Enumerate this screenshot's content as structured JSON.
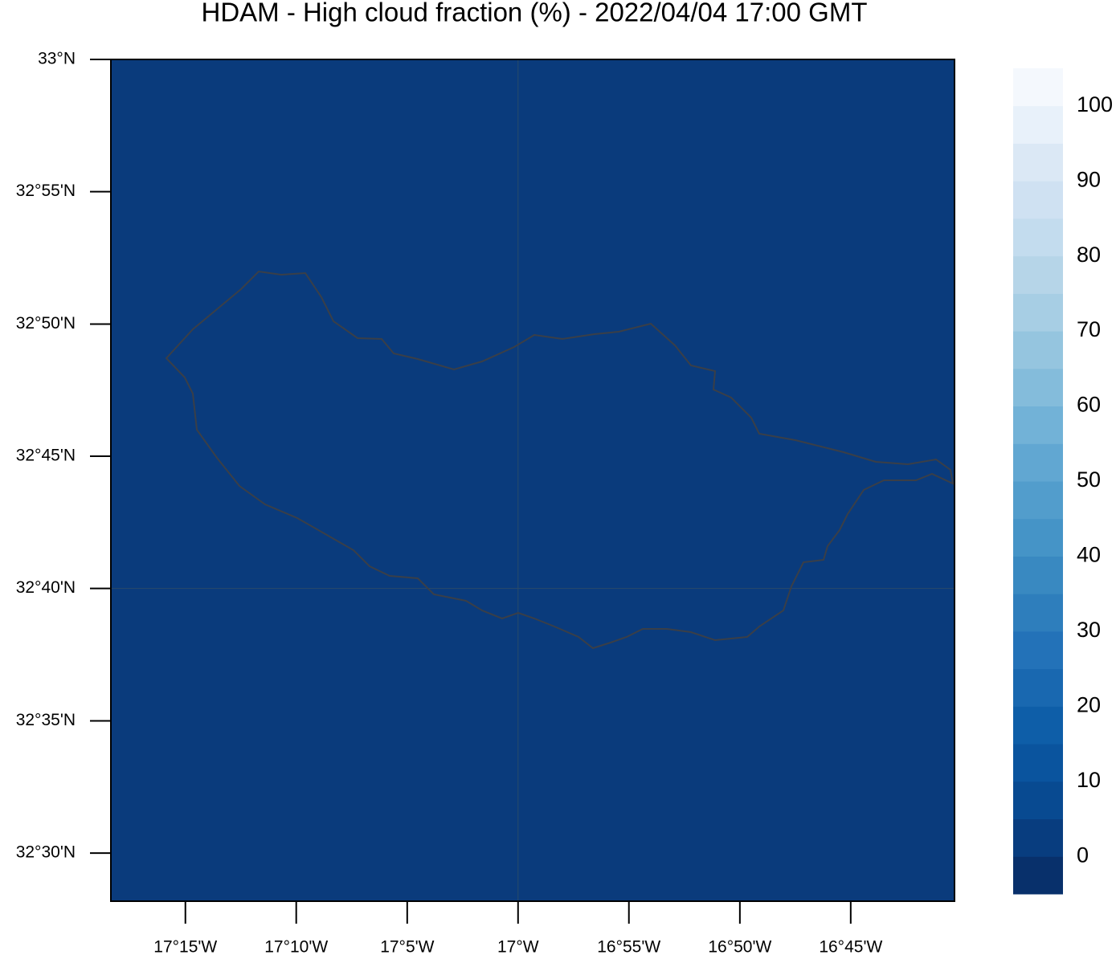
{
  "title": "HDAM - High cloud fraction (%)  -  2022/04/04  17:00 GMT",
  "map": {
    "fill_color": "#0a3b7c",
    "coast_color": "#3a3f48",
    "latlim": [
      32.4697,
      33.0
    ],
    "lonlim": [
      -17.306,
      -16.672
    ],
    "lat_ticks": [
      {
        "value": 33.0,
        "label": "33°N"
      },
      {
        "value": 32.9167,
        "label": "32°55'N"
      },
      {
        "value": 32.8333,
        "label": "32°50'N"
      },
      {
        "value": 32.75,
        "label": "32°45'N"
      },
      {
        "value": 32.6667,
        "label": "32°40'N"
      },
      {
        "value": 32.5833,
        "label": "32°35'N"
      },
      {
        "value": 32.5,
        "label": "32°30'N"
      }
    ],
    "lon_ticks": [
      {
        "value": -17.25,
        "label": "17°15'W"
      },
      {
        "value": -17.1667,
        "label": "17°10'W"
      },
      {
        "value": -17.0833,
        "label": "17°5'W"
      },
      {
        "value": -17.0,
        "label": "17°W"
      },
      {
        "value": -16.9167,
        "label": "16°55'W"
      },
      {
        "value": -16.8333,
        "label": "16°50'W"
      },
      {
        "value": -16.75,
        "label": "16°45'W"
      }
    ]
  },
  "colorbar": {
    "clim": [
      -5,
      105
    ],
    "ticks": [
      0,
      10,
      20,
      30,
      40,
      50,
      60,
      70,
      80,
      90,
      100
    ],
    "colors": [
      "#08306b",
      "#083d7f",
      "#084a91",
      "#0a549e",
      "#0e5ea8",
      "#1968b0",
      "#2372b8",
      "#2e7ebc",
      "#3989c1",
      "#4594c7",
      "#529dcc",
      "#61a7d2",
      "#72b2d7",
      "#84bcdb",
      "#95c5df",
      "#a7cee4",
      "#b6d5e8",
      "#c3dcee",
      "#cfe1f2",
      "#dbe8f5",
      "#e8f1fa",
      "#f4f8fd"
    ]
  }
}
